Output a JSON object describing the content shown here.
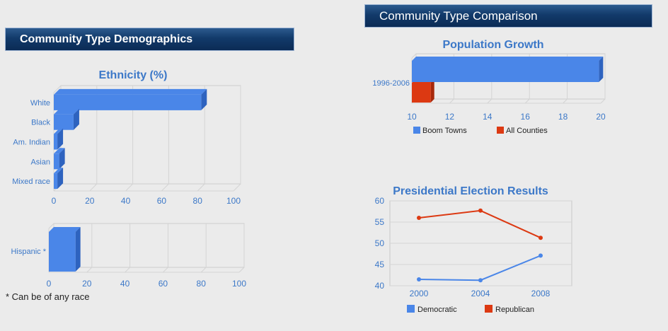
{
  "left_panel": {
    "title": "Community Type Demographics"
  },
  "right_panel": {
    "title": "Community Type Comparison"
  },
  "footnote": "* Can be of any race",
  "colors": {
    "blue": "#4a86e8",
    "blue_dark": "#2e63bf",
    "red": "#dc3912",
    "red_dark": "#a8290c",
    "title_blue": "#3c78c8"
  },
  "chart_data": [
    {
      "id": "ethnicity",
      "type": "bar",
      "orientation": "horizontal",
      "title": "Ethnicity (%)",
      "categories": [
        "White",
        "Black",
        "Am. Indian",
        "Asian",
        "Mixed race"
      ],
      "values": [
        82,
        11,
        2,
        3,
        2
      ],
      "xlim": [
        0,
        100
      ],
      "xticks": [
        0,
        20,
        40,
        60,
        80,
        100
      ]
    },
    {
      "id": "hispanic",
      "type": "bar",
      "orientation": "horizontal",
      "title": "",
      "categories": [
        "Hispanic *"
      ],
      "values": [
        14
      ],
      "xlim": [
        0,
        100
      ],
      "xticks": [
        0,
        20,
        40,
        60,
        80,
        100
      ]
    },
    {
      "id": "population_growth",
      "type": "bar",
      "orientation": "horizontal",
      "title": "Population Growth",
      "categories": [
        "1996-2006"
      ],
      "series": [
        {
          "name": "Boom Towns",
          "values": [
            19.9
          ]
        },
        {
          "name": "All Counties",
          "values": [
            11.0
          ]
        }
      ],
      "xlim": [
        10,
        20
      ],
      "xticks": [
        10,
        12,
        14,
        16,
        18,
        20
      ],
      "legend": "bottom"
    },
    {
      "id": "election",
      "type": "line",
      "title": "Presidential Election Results",
      "x": [
        "2000",
        "2004",
        "2008"
      ],
      "series": [
        {
          "name": "Democratic",
          "values": [
            41.5,
            41.3,
            47.1
          ]
        },
        {
          "name": "Republican",
          "values": [
            56.0,
            57.7,
            51.3
          ]
        }
      ],
      "ylim": [
        40,
        60
      ],
      "yticks": [
        40,
        45,
        50,
        55,
        60
      ],
      "legend": "bottom"
    }
  ]
}
